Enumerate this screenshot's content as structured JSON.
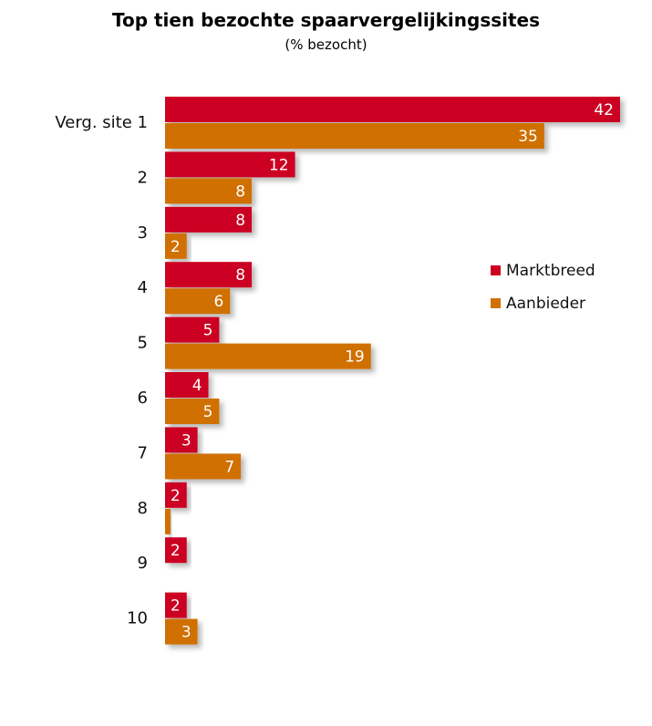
{
  "chart_data": {
    "type": "bar",
    "orientation": "horizontal",
    "title": "Top tien bezochte spaarvergelijkingssites",
    "subtitle": "(% bezocht)",
    "categories": [
      "Verg. site 1",
      "2",
      "3",
      "4",
      "5",
      "6",
      "7",
      "8",
      "9",
      "10"
    ],
    "series": [
      {
        "name": "Marktbreed",
        "color": "#cc0022",
        "values": [
          42,
          12,
          8,
          8,
          5,
          4,
          3,
          2,
          2,
          2
        ]
      },
      {
        "name": "Aanbieder",
        "color": "#d07000",
        "values": [
          35,
          8,
          2,
          6,
          19,
          5,
          7,
          0.5,
          0,
          3
        ]
      }
    ],
    "data_labels": {
      "Marktbreed": [
        "42",
        "12",
        "8",
        "8",
        "5",
        "4",
        "3",
        "2",
        "2",
        "2"
      ],
      "Aanbieder": [
        "35",
        "8",
        "2",
        "6",
        "19",
        "5",
        "7",
        "",
        "",
        "3"
      ]
    },
    "xlim": [
      0,
      42
    ],
    "grid": false,
    "legend": "right"
  }
}
